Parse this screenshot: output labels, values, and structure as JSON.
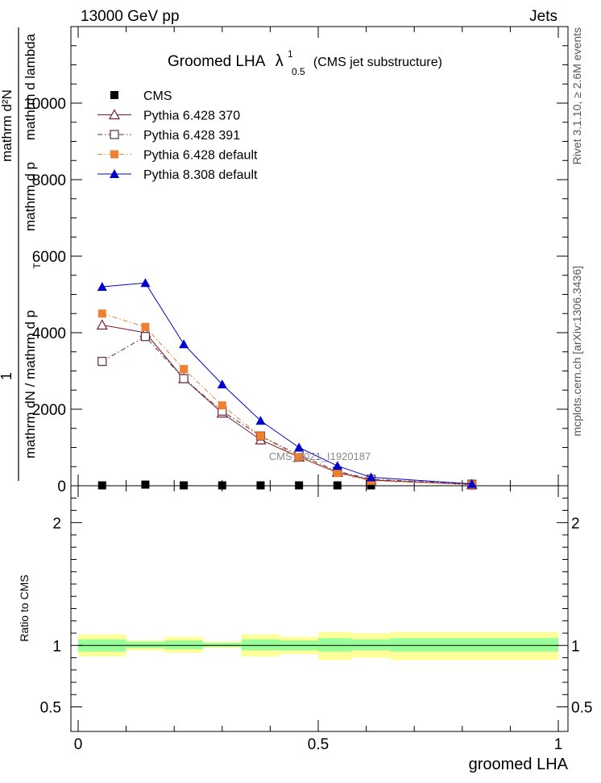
{
  "header": {
    "left": "13000 GeV pp",
    "right": "Jets"
  },
  "title": {
    "main": "Groomed LHA",
    "lambda": "λ",
    "sup": "1",
    "sub": "0.5",
    "suffix": "(CMS jet substructure)"
  },
  "side_labels": {
    "rivet": "Rivet 3.1.10, ≥ 2.6M events",
    "mcplots": "mcplots.cern.ch [arXiv:1306.3436]"
  },
  "watermark": "CMS_2021_I1920187",
  "colors": {
    "cms": "#000000",
    "p370": "#7b1a2e",
    "p391": "#5e2a3c",
    "pdefault": "#f08030",
    "p8": "#0000cc",
    "band_inner": "#99ff99",
    "band_outer": "#ffff99"
  },
  "chart_data": [
    {
      "type": "line",
      "panel": "main",
      "ylabel": "1 / mathrm dN / mathrm d p_T mathrm d^2N / mathrm d p_T mathrm d lambda",
      "ylabel_parts": {
        "top": "mathrm d²N",
        "bottom": "mathrm dN / mathrm d p",
        "one": "1",
        "denom": "mathrm d p",
        "denom_tail": "mathrm d lambda",
        "T": "T"
      },
      "xlim": [
        0,
        1
      ],
      "ylim": [
        0,
        12000
      ],
      "grid": false,
      "yticks": [
        0,
        2000,
        4000,
        6000,
        8000,
        10000
      ],
      "ytick_labels": [
        "0",
        "2000",
        "4000",
        "6000",
        "8000",
        "10000"
      ],
      "legend_position": "top-left",
      "x": [
        0.05,
        0.14,
        0.22,
        0.3,
        0.38,
        0.46,
        0.54,
        0.61,
        0.82
      ],
      "series": [
        {
          "name": "CMS",
          "key": "cms",
          "marker": "square-filled",
          "line": "none",
          "values": [
            10,
            30,
            10,
            10,
            10,
            10,
            10,
            10,
            10
          ]
        },
        {
          "name": "Pythia 6.428 370",
          "key": "p370",
          "marker": "triangle-open",
          "line": "solid",
          "values": [
            4200,
            4000,
            2800,
            1900,
            1200,
            750,
            350,
            150,
            30
          ]
        },
        {
          "name": "Pythia 6.428 391",
          "key": "p391",
          "marker": "square-open",
          "line": "dashdot",
          "values": [
            3250,
            3900,
            2800,
            1950,
            1300,
            800,
            380,
            170,
            40
          ]
        },
        {
          "name": "Pythia 6.428 default",
          "key": "pdefault",
          "marker": "square-filled",
          "line": "dashdot",
          "values": [
            4500,
            4150,
            3050,
            2100,
            1300,
            750,
            330,
            130,
            30
          ]
        },
        {
          "name": "Pythia 8.308 default",
          "key": "p8",
          "marker": "triangle-filled",
          "line": "solid",
          "values": [
            5200,
            5300,
            3700,
            2650,
            1700,
            1000,
            520,
            220,
            50
          ]
        }
      ]
    },
    {
      "type": "area",
      "panel": "ratio",
      "ylabel": "Ratio to CMS",
      "xlabel": "groomed LHA",
      "xlim": [
        0,
        1
      ],
      "ylim": [
        0.3,
        2.3
      ],
      "yticks": [
        0.5,
        1,
        2
      ],
      "ytick_labels": [
        "0.5",
        "1",
        "2"
      ],
      "xticks": [
        0,
        0.5,
        1
      ],
      "xtick_labels": [
        "0",
        "0.5",
        "1"
      ],
      "grid": false,
      "bins": [
        {
          "lo": 0.0,
          "hi": 0.1,
          "inner": [
            0.95,
            1.05
          ],
          "outer": [
            0.91,
            1.09
          ]
        },
        {
          "lo": 0.1,
          "hi": 0.18,
          "inner": [
            0.98,
            1.03
          ],
          "outer": [
            0.96,
            1.04
          ]
        },
        {
          "lo": 0.18,
          "hi": 0.26,
          "inner": [
            0.97,
            1.04
          ],
          "outer": [
            0.94,
            1.07
          ]
        },
        {
          "lo": 0.26,
          "hi": 0.34,
          "inner": [
            0.99,
            1.02
          ],
          "outer": [
            0.98,
            1.03
          ]
        },
        {
          "lo": 0.34,
          "hi": 0.42,
          "inner": [
            0.96,
            1.05
          ],
          "outer": [
            0.91,
            1.09
          ]
        },
        {
          "lo": 0.42,
          "hi": 0.5,
          "inner": [
            0.96,
            1.04
          ],
          "outer": [
            0.93,
            1.07
          ]
        },
        {
          "lo": 0.5,
          "hi": 0.57,
          "inner": [
            0.95,
            1.06
          ],
          "outer": [
            0.88,
            1.11
          ]
        },
        {
          "lo": 0.57,
          "hi": 0.65,
          "inner": [
            0.96,
            1.05
          ],
          "outer": [
            0.9,
            1.1
          ]
        },
        {
          "lo": 0.65,
          "hi": 1.0,
          "inner": [
            0.95,
            1.06
          ],
          "outer": [
            0.88,
            1.11
          ]
        }
      ]
    }
  ]
}
